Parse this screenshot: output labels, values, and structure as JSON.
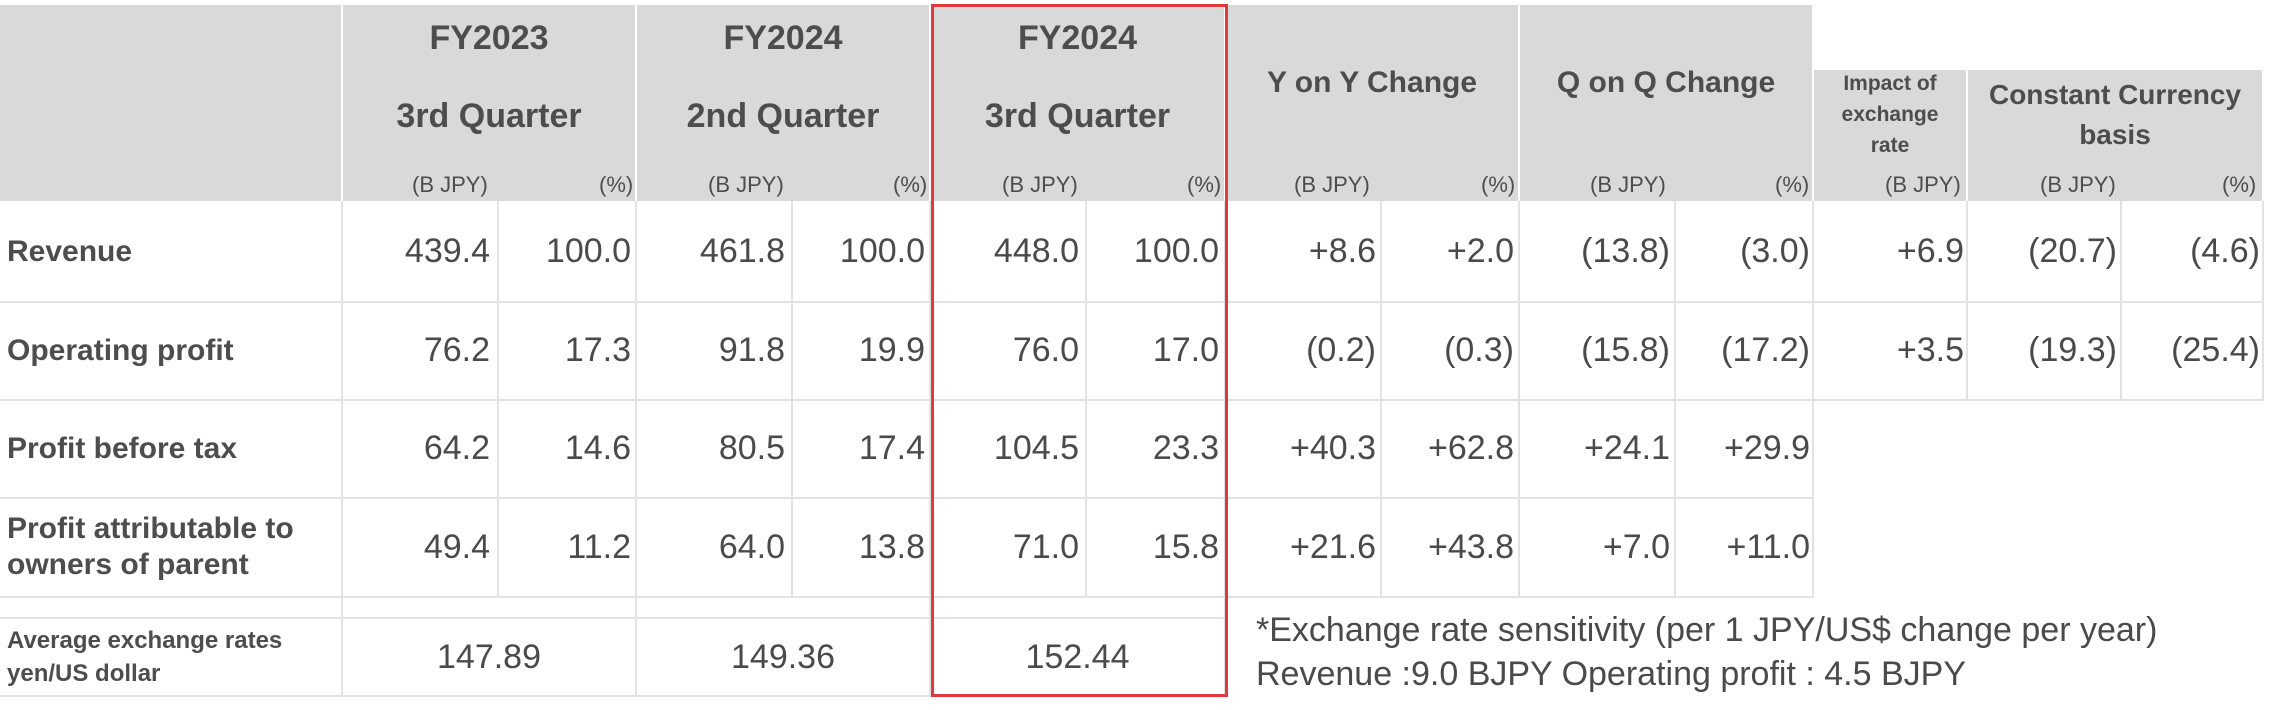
{
  "header": {
    "periods": [
      {
        "year": "FY2023",
        "quarter": "3rd Quarter"
      },
      {
        "year": "FY2024",
        "quarter": "2nd Quarter"
      },
      {
        "year": "FY2024",
        "quarter": "3rd Quarter"
      }
    ],
    "yoy": "Y on Y Change",
    "qoq": "Q on Q Change",
    "impact": "Impact of exchange rate",
    "impact_lines": [
      "Impact of",
      "exchange",
      "rate"
    ],
    "constant_lines": [
      "Constant Currency",
      "basis"
    ],
    "unit_bjpy": "(B JPY)",
    "unit_pct": "(%)"
  },
  "rows": [
    {
      "label_lines": [
        "Revenue"
      ],
      "values": [
        "439.4",
        "100.0",
        "461.8",
        "100.0",
        "448.0",
        "100.0",
        "+8.6",
        "+2.0",
        "(13.8)",
        "(3.0)",
        "+6.9",
        "(20.7)",
        "(4.6)"
      ]
    },
    {
      "label_lines": [
        "Operating profit"
      ],
      "values": [
        "76.2",
        "17.3",
        "91.8",
        "19.9",
        "76.0",
        "17.0",
        "(0.2)",
        "(0.3)",
        "(15.8)",
        "(17.2)",
        "+3.5",
        "(19.3)",
        "(25.4)"
      ]
    },
    {
      "label_lines": [
        "Profit before tax"
      ],
      "values": [
        "64.2",
        "14.6",
        "80.5",
        "17.4",
        "104.5",
        "23.3",
        "+40.3",
        "+62.8",
        "+24.1",
        "+29.9"
      ]
    },
    {
      "label_lines": [
        "Profit attributable to",
        "owners of parent"
      ],
      "values": [
        "49.4",
        "11.2",
        "64.0",
        "13.8",
        "71.0",
        "15.8",
        "+21.6",
        "+43.8",
        "+7.0",
        "+11.0"
      ]
    }
  ],
  "exchange_row": {
    "label_lines": [
      "Average exchange rates",
      "yen/US dollar"
    ],
    "rates": [
      "147.89",
      "149.36",
      "152.44"
    ]
  },
  "note": {
    "line1": "*Exchange rate sensitivity (per 1 JPY/US$ change per year)",
    "line2": "Revenue :9.0 BJPY Operating profit : 4.5 BJPY"
  },
  "colors": {
    "header_bg": "#d9d9d9",
    "grid_line": "#e2e2e2",
    "highlight_border": "#e0393e",
    "text": "#4a4a4a"
  }
}
